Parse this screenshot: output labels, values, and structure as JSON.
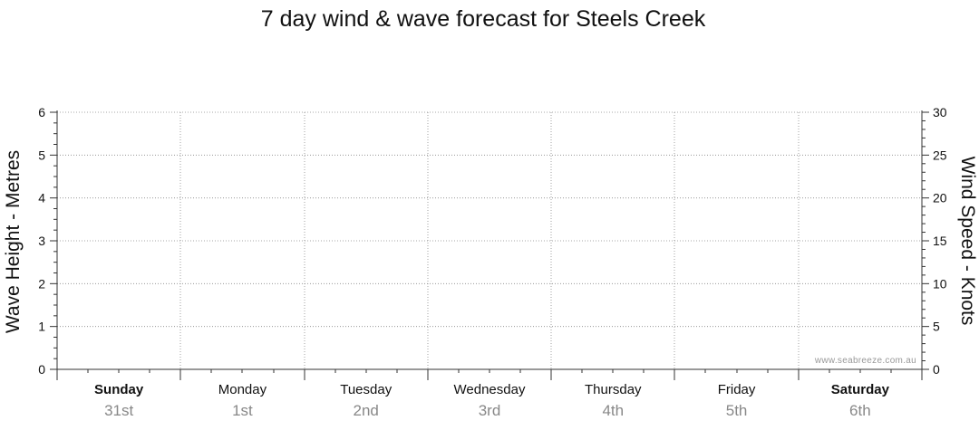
{
  "chart_data": {
    "type": "line",
    "title": "7 day wind & wave forecast for Steels Creek",
    "ylabel_left": "Wave Height - Metres",
    "ylabel_right": "Wind Speed - Knots",
    "ylim_left": [
      0,
      6
    ],
    "ylim_right": [
      0,
      30
    ],
    "yticks_left": [
      0,
      1,
      2,
      3,
      4,
      5,
      6
    ],
    "yticks_right": [
      0,
      5,
      10,
      15,
      20,
      25,
      30
    ],
    "grid": true,
    "days": [
      {
        "name": "Sunday",
        "date": "31st",
        "bold": true
      },
      {
        "name": "Monday",
        "date": "1st",
        "bold": false
      },
      {
        "name": "Tuesday",
        "date": "2nd",
        "bold": false
      },
      {
        "name": "Wednesday",
        "date": "3rd",
        "bold": false
      },
      {
        "name": "Thursday",
        "date": "4th",
        "bold": false
      },
      {
        "name": "Friday",
        "date": "5th",
        "bold": false
      },
      {
        "name": "Saturday",
        "date": "6th",
        "bold": true
      }
    ],
    "series": [],
    "watermark": "www.seabreeze.com.au"
  }
}
